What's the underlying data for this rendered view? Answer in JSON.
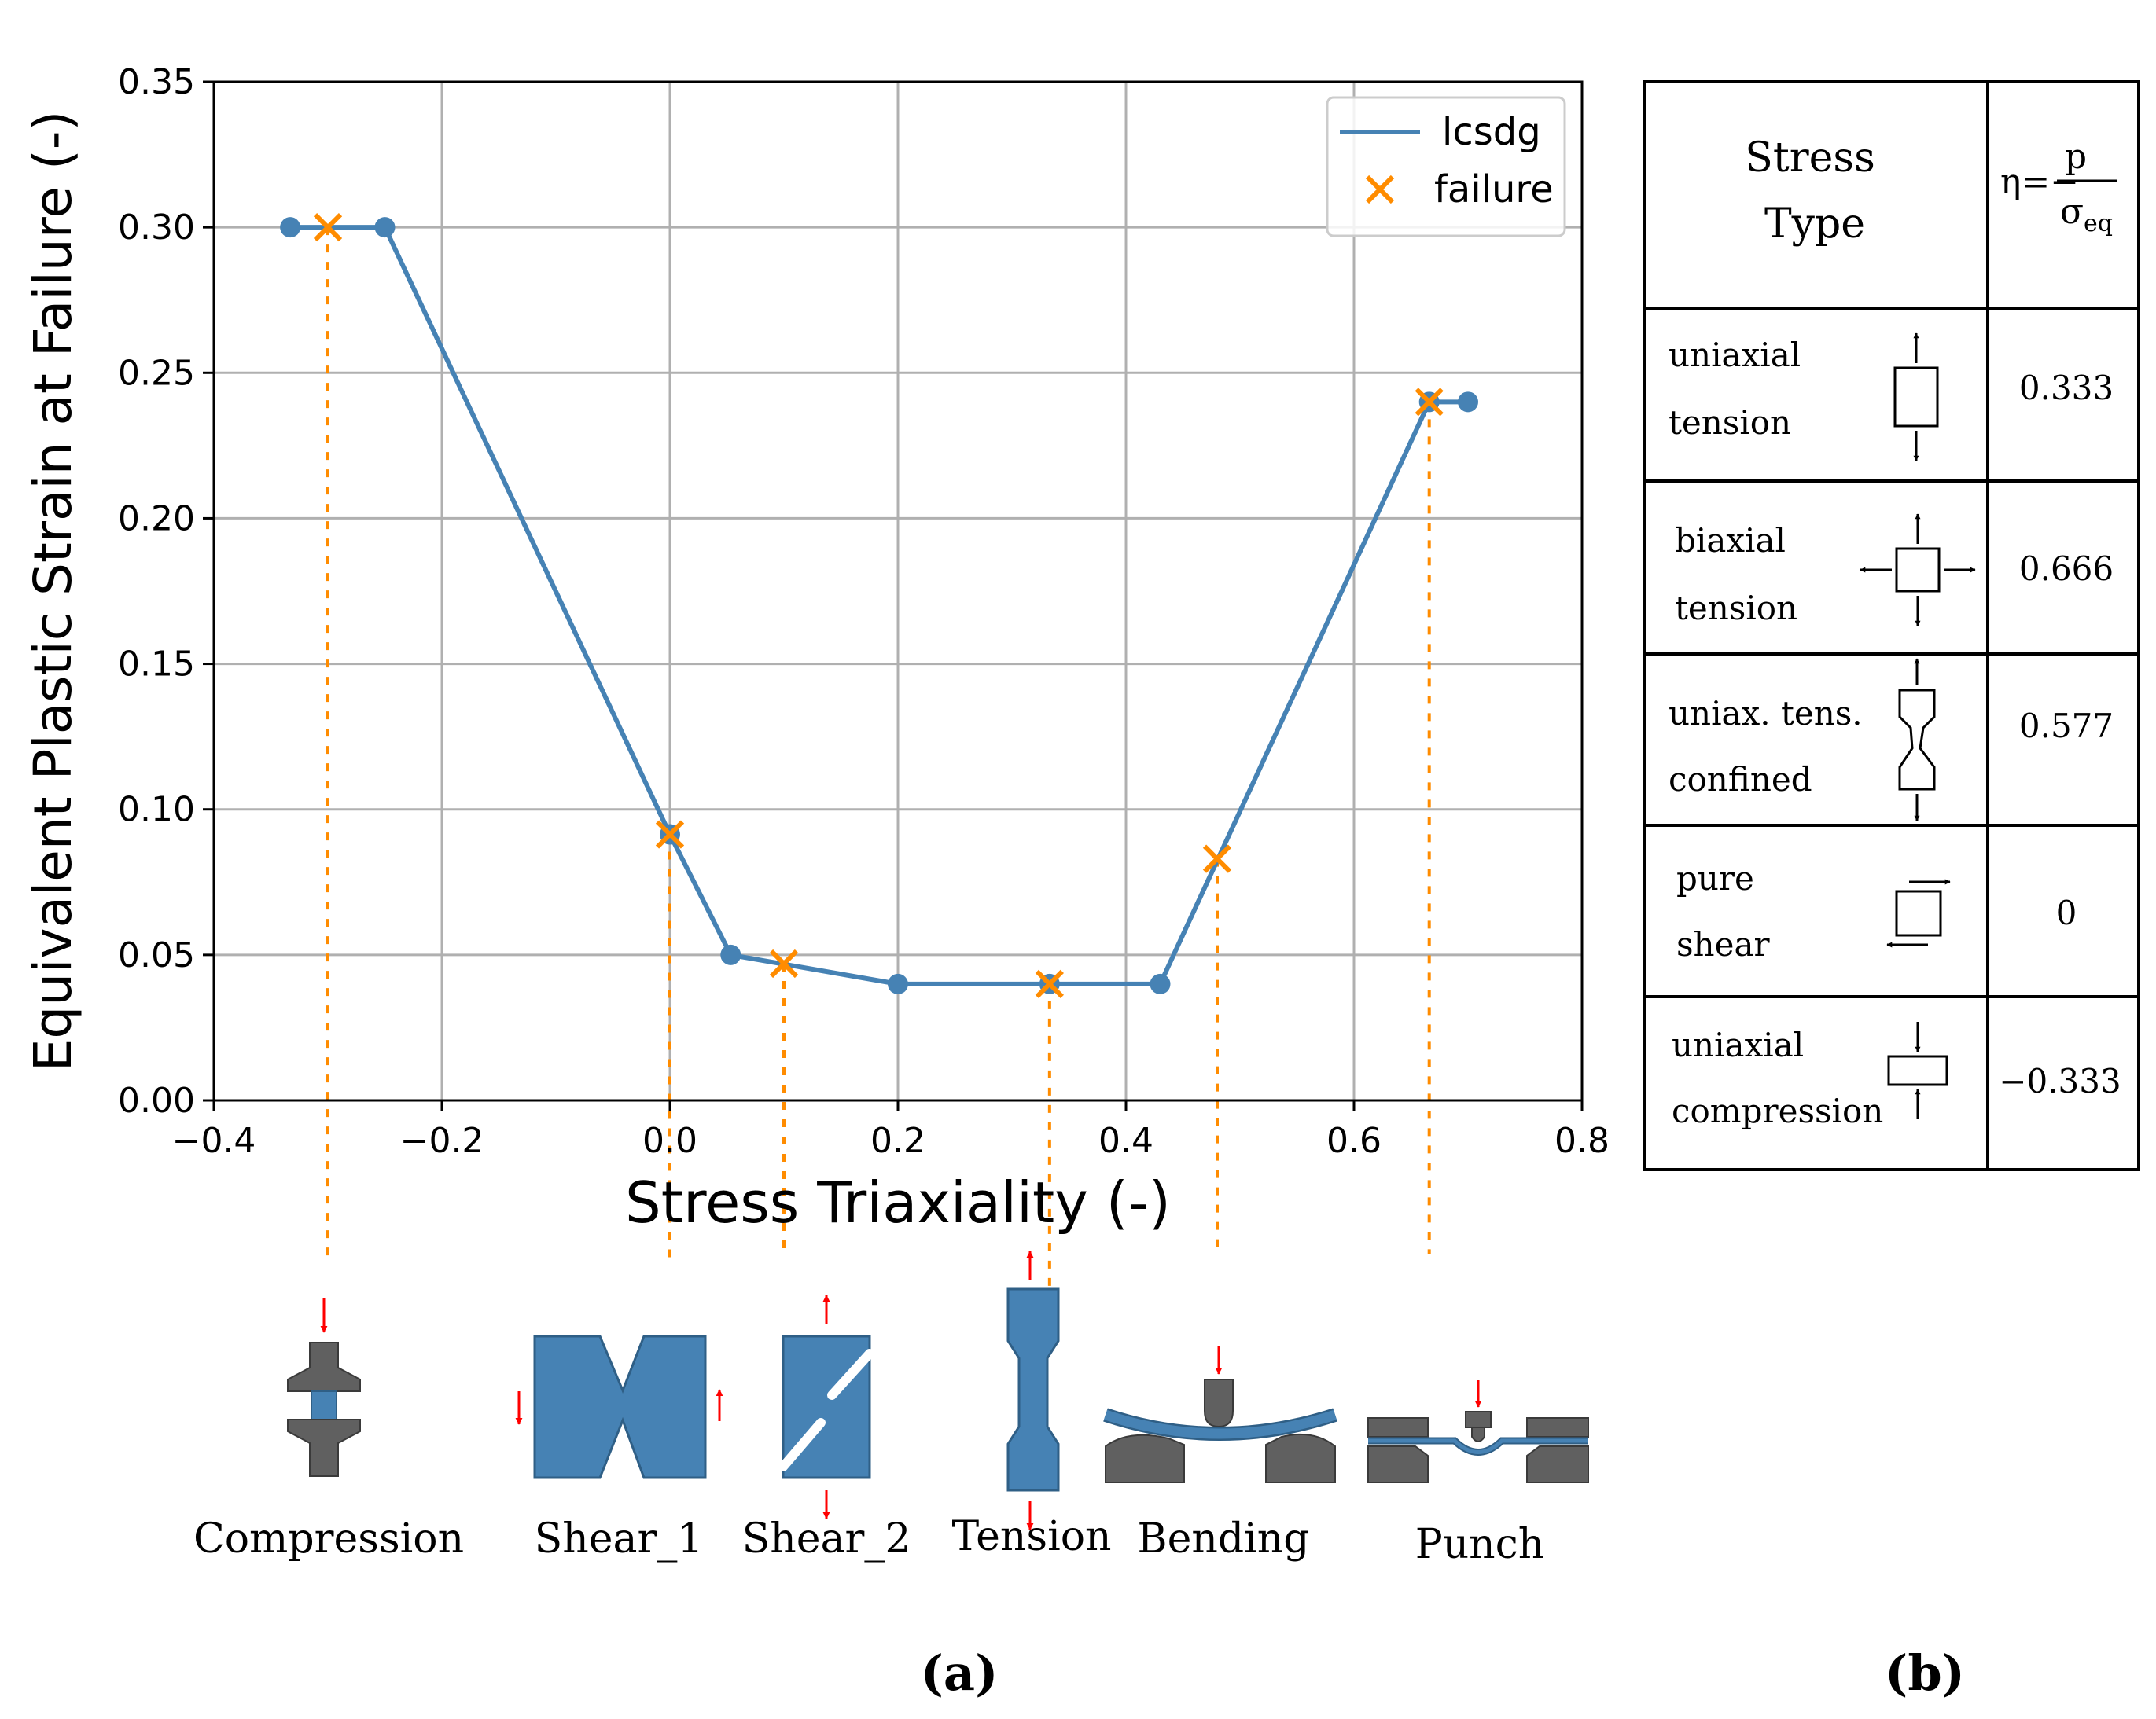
{
  "chart_data": {
    "type": "line",
    "xlabel": "Stress Triaxiality (-)",
    "ylabel": "Equivalent Plastic Strain at Failure (-)",
    "xlim": [
      -0.4,
      0.8
    ],
    "ylim": [
      0.0,
      0.35
    ],
    "xticks": [
      -0.4,
      -0.2,
      0.0,
      0.2,
      0.4,
      0.6,
      0.8
    ],
    "xtick_labels": [
      "−0.4",
      "−0.2",
      "0.0",
      "0.2",
      "0.4",
      "0.6",
      "0.8"
    ],
    "yticks": [
      0.0,
      0.05,
      0.1,
      0.15,
      0.2,
      0.25,
      0.3,
      0.35
    ],
    "ytick_labels": [
      "0.00",
      "0.05",
      "0.10",
      "0.15",
      "0.20",
      "0.25",
      "0.30",
      "0.35"
    ],
    "grid": true,
    "legend_position": "top-right",
    "series": [
      {
        "name": "lcsdg",
        "color": "#4682b4",
        "style": "line-with-dots",
        "x": [
          -0.333,
          -0.25,
          0.0,
          0.0533,
          0.2,
          0.333,
          0.43,
          0.666,
          0.7
        ],
        "y": [
          0.3,
          0.3,
          0.0914,
          0.05,
          0.04,
          0.04,
          0.04,
          0.24,
          0.24
        ]
      },
      {
        "name": "failure",
        "color": "#ff8c00",
        "style": "x-marker",
        "x": [
          -0.3,
          0.0,
          0.1,
          0.333,
          0.48,
          0.666
        ],
        "y": [
          0.3,
          0.0914,
          0.047,
          0.04,
          0.083,
          0.24
        ]
      }
    ],
    "guide_lines_color": "#ff8c00"
  },
  "specimens": {
    "labels": [
      "Compression",
      "Shear_1",
      "Shear_2",
      "Tension",
      "Bending",
      "Punch"
    ],
    "colors": {
      "specimen": "#4682b4",
      "tool": "#606060",
      "force_arrow": "#ff0000"
    }
  },
  "panel_labels": {
    "a": "(a)",
    "b": "(b)"
  },
  "table": {
    "header": {
      "stress_type_line1": "Stress",
      "stress_type_line2": "Type",
      "eta_lhs": "η=−",
      "eta_num": "p",
      "eta_den": "σ",
      "eta_den_sub": "eq"
    },
    "rows": [
      {
        "line1": "uniaxial",
        "line2": "tension",
        "value": "0.333",
        "icon": "uniaxial-tension-icon"
      },
      {
        "line1": "biaxial",
        "line2": "tension",
        "value": "0.666",
        "icon": "biaxial-tension-icon"
      },
      {
        "line1": "uniax. tens.",
        "line2": "confined",
        "value": "0.577",
        "icon": "confined-tension-icon"
      },
      {
        "line1": "pure",
        "line2": "shear",
        "value": "0",
        "icon": "pure-shear-icon"
      },
      {
        "line1": "uniaxial",
        "line2": "compression",
        "value": "−0.333",
        "icon": "uniaxial-compression-icon"
      }
    ]
  }
}
